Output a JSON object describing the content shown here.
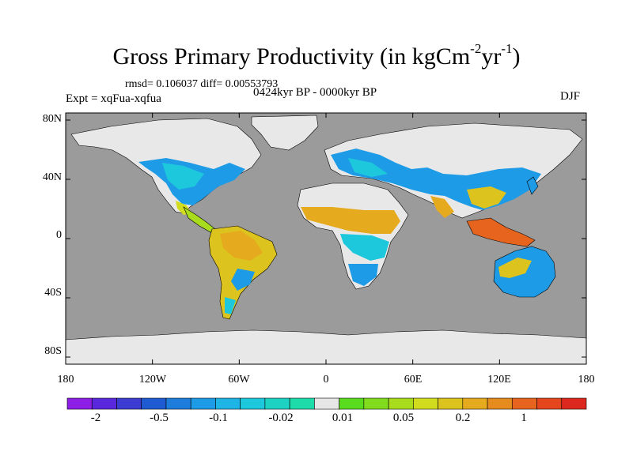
{
  "title": {
    "main": "Gross Primary Productivity (in kgCm",
    "exp1": "-2",
    "mid": "yr",
    "exp2": "-1",
    "end": ")"
  },
  "stats": "rmsd= 0.106037 diff= 0.00553793",
  "experiment": "Expt = xqFua-xqfua",
  "period": "0424kyr BP - 0000kyr BP",
  "season": "DJF",
  "map": {
    "lat_ticks": [
      "80N",
      "40N",
      "0",
      "40S",
      "80S"
    ],
    "lon_ticks": [
      "180",
      "120W",
      "60W",
      "0",
      "60E",
      "120E",
      "180"
    ],
    "colors": {
      "ocean": "#9b9b9b",
      "land_missing": "#e8e8e8",
      "coast": "#000000"
    }
  },
  "colorbar": {
    "colors": [
      "#8c1ee6",
      "#5a28dc",
      "#3c3cd2",
      "#1e5ad2",
      "#1e7ddc",
      "#1e9be6",
      "#1eb4e6",
      "#1ec8dc",
      "#1ed2c3",
      "#1edcaa",
      "#e6e6e6",
      "#5adc1e",
      "#82dc1e",
      "#aadc1e",
      "#d2dc1e",
      "#dcc31e",
      "#e6aa1e",
      "#e68c1e",
      "#e6641e",
      "#e6461e",
      "#dc281e"
    ],
    "labels": [
      "-2",
      "-0.5",
      "-0.1",
      "-0.02",
      "0.01",
      "0.05",
      "0.2",
      "1"
    ]
  }
}
